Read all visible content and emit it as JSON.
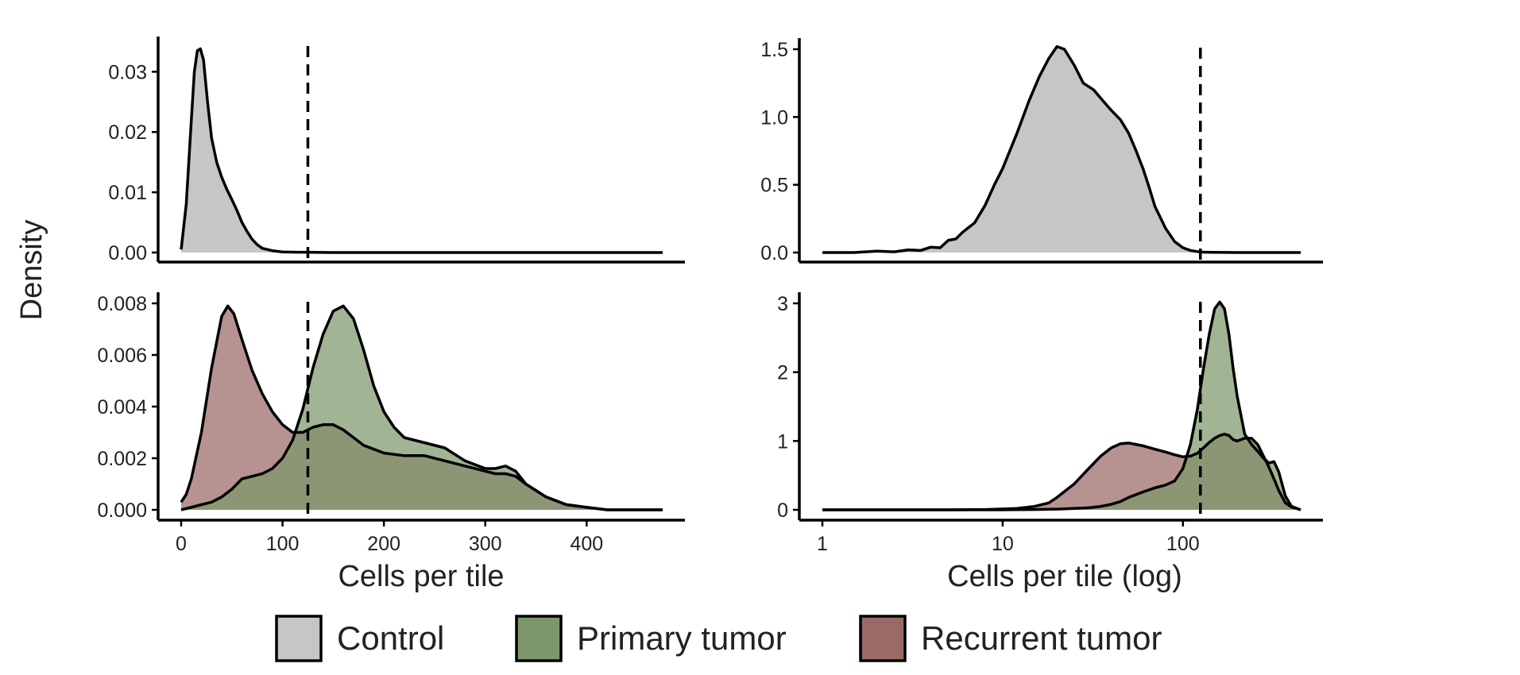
{
  "colors": {
    "control": "#c6c6c6",
    "primary": "#7d976a",
    "recurrent": "#9a6a66",
    "overlap": "#7a6455",
    "line": "#000000"
  },
  "figure": {
    "y_label": "Density",
    "x_label_left": "Cells per tile",
    "x_label_right": "Cells per tile (log)"
  },
  "legend": {
    "items": [
      {
        "key": "control",
        "label": "Control"
      },
      {
        "key": "primary",
        "label": "Primary tumor"
      },
      {
        "key": "recurrent",
        "label": "Recurrent tumor"
      }
    ]
  },
  "chart_data": [
    {
      "type": "area",
      "id": "top-left",
      "xlim": [
        0,
        475
      ],
      "ylim": [
        0,
        0.034
      ],
      "x_ticks": [],
      "y_ticks": [
        "0.00",
        "0.01",
        "0.02",
        "0.03"
      ],
      "y_tick_values": [
        0,
        0.01,
        0.02,
        0.03
      ],
      "threshold": 125,
      "threshold_style": "dashed",
      "series": [
        {
          "key": "control",
          "x": [
            0,
            5,
            10,
            13,
            16,
            19,
            22,
            26,
            30,
            35,
            40,
            45,
            50,
            55,
            60,
            65,
            70,
            75,
            80,
            90,
            100,
            115,
            130,
            150,
            475
          ],
          "y": [
            0.0005,
            0.008,
            0.022,
            0.03,
            0.0335,
            0.0338,
            0.032,
            0.025,
            0.019,
            0.015,
            0.0125,
            0.0105,
            0.0088,
            0.007,
            0.005,
            0.0035,
            0.0022,
            0.0013,
            0.0007,
            0.0003,
            0.0001,
            5e-05,
            2e-05,
            0,
            0
          ]
        }
      ]
    },
    {
      "type": "area",
      "id": "top-right",
      "scale": "log",
      "xlim": [
        1,
        450
      ],
      "ylim": [
        0,
        1.5
      ],
      "x_ticks": [],
      "y_ticks": [
        "0.0",
        "0.5",
        "1.0",
        "1.5"
      ],
      "y_tick_values": [
        0,
        0.5,
        1.0,
        1.5
      ],
      "threshold": 125,
      "threshold_style": "dashed",
      "series": [
        {
          "key": "control",
          "x": [
            1,
            1.5,
            2,
            2.5,
            3,
            3.5,
            4,
            4.5,
            5,
            5.5,
            6,
            7,
            8,
            9,
            10,
            12,
            14,
            16,
            18,
            20,
            22,
            25,
            28,
            32,
            36,
            40,
            45,
            50,
            55,
            60,
            65,
            70,
            80,
            90,
            100,
            110,
            120,
            130,
            150,
            200,
            300,
            450
          ],
          "y": [
            0,
            0,
            0.01,
            0.005,
            0.02,
            0.015,
            0.04,
            0.035,
            0.09,
            0.1,
            0.15,
            0.22,
            0.35,
            0.5,
            0.62,
            0.88,
            1.12,
            1.3,
            1.43,
            1.52,
            1.5,
            1.38,
            1.25,
            1.2,
            1.12,
            1.05,
            0.98,
            0.88,
            0.75,
            0.62,
            0.48,
            0.34,
            0.18,
            0.08,
            0.035,
            0.015,
            0.007,
            0.003,
            0.001,
            0,
            0,
            0
          ]
        }
      ]
    },
    {
      "type": "area",
      "id": "bottom-left",
      "xlim": [
        0,
        475
      ],
      "ylim": [
        0,
        0.008
      ],
      "x_ticks": [
        "0",
        "100",
        "200",
        "300",
        "400"
      ],
      "x_tick_values": [
        0,
        100,
        200,
        300,
        400
      ],
      "y_ticks": [
        "0.000",
        "0.002",
        "0.004",
        "0.006",
        "0.008"
      ],
      "y_tick_values": [
        0,
        0.002,
        0.004,
        0.006,
        0.008
      ],
      "threshold": 125,
      "threshold_style": "dashed",
      "series": [
        {
          "key": "recurrent",
          "x": [
            0,
            5,
            10,
            20,
            30,
            40,
            46,
            52,
            60,
            70,
            80,
            90,
            100,
            110,
            120,
            130,
            140,
            150,
            160,
            170,
            180,
            200,
            220,
            240,
            260,
            280,
            300,
            310,
            320,
            330,
            340,
            360,
            380,
            400,
            420,
            475
          ],
          "y": [
            0.0003,
            0.0006,
            0.0012,
            0.003,
            0.0055,
            0.0075,
            0.0079,
            0.0076,
            0.0066,
            0.0054,
            0.0045,
            0.0038,
            0.0033,
            0.003,
            0.003,
            0.0032,
            0.0033,
            0.0033,
            0.0031,
            0.0028,
            0.0025,
            0.0022,
            0.0021,
            0.0021,
            0.0019,
            0.0017,
            0.0015,
            0.0014,
            0.0014,
            0.0013,
            0.001,
            0.0005,
            0.0002,
            0.0001,
            0,
            0
          ]
        },
        {
          "key": "primary",
          "x": [
            0,
            10,
            20,
            30,
            40,
            50,
            60,
            70,
            80,
            90,
            100,
            110,
            120,
            130,
            140,
            150,
            160,
            170,
            180,
            190,
            200,
            210,
            220,
            240,
            260,
            280,
            300,
            310,
            320,
            330,
            340,
            360,
            380,
            400,
            420,
            475
          ],
          "y": [
            0,
            0.0001,
            0.0002,
            0.0003,
            0.0005,
            0.0008,
            0.0012,
            0.0013,
            0.0014,
            0.0016,
            0.002,
            0.0027,
            0.0039,
            0.0055,
            0.0068,
            0.0077,
            0.0079,
            0.0074,
            0.0062,
            0.0048,
            0.0038,
            0.0032,
            0.0028,
            0.0026,
            0.0024,
            0.0019,
            0.0016,
            0.0016,
            0.0017,
            0.0015,
            0.001,
            0.0005,
            0.0002,
            0.0001,
            0,
            0
          ]
        }
      ]
    },
    {
      "type": "area",
      "id": "bottom-right",
      "scale": "log",
      "xlim": [
        1,
        450
      ],
      "ylim": [
        0,
        3
      ],
      "x_ticks": [
        "1",
        "10",
        "100"
      ],
      "x_tick_values": [
        1,
        10,
        100
      ],
      "y_ticks": [
        "0",
        "1",
        "2",
        "3"
      ],
      "y_tick_values": [
        0,
        1,
        2,
        3
      ],
      "threshold": 125,
      "threshold_style": "dashed",
      "series": [
        {
          "key": "recurrent",
          "x": [
            1,
            5,
            8,
            12,
            15,
            18,
            20,
            25,
            30,
            35,
            40,
            45,
            50,
            60,
            70,
            80,
            90,
            100,
            110,
            120,
            130,
            140,
            150,
            160,
            170,
            180,
            190,
            200,
            220,
            240,
            260,
            280,
            300,
            320,
            340,
            370,
            400,
            450
          ],
          "y": [
            0,
            0,
            0.005,
            0.02,
            0.05,
            0.1,
            0.18,
            0.38,
            0.6,
            0.78,
            0.9,
            0.96,
            0.97,
            0.93,
            0.88,
            0.84,
            0.8,
            0.77,
            0.78,
            0.82,
            0.9,
            0.98,
            1.04,
            1.08,
            1.1,
            1.08,
            1.02,
            1.0,
            1.04,
            1.04,
            0.95,
            0.78,
            0.62,
            0.45,
            0.28,
            0.1,
            0.04,
            0
          ]
        },
        {
          "key": "primary",
          "x": [
            1,
            10,
            15,
            20,
            25,
            30,
            35,
            40,
            45,
            50,
            60,
            70,
            80,
            90,
            100,
            110,
            120,
            130,
            140,
            150,
            160,
            170,
            180,
            190,
            200,
            220,
            240,
            260,
            280,
            300,
            320,
            340,
            370,
            400,
            450
          ],
          "y": [
            0,
            0,
            0.005,
            0.01,
            0.02,
            0.03,
            0.05,
            0.08,
            0.12,
            0.18,
            0.26,
            0.32,
            0.36,
            0.42,
            0.6,
            0.95,
            1.45,
            2.05,
            2.55,
            2.92,
            3.02,
            2.92,
            2.55,
            2.05,
            1.65,
            1.1,
            0.95,
            0.85,
            0.75,
            0.68,
            0.7,
            0.55,
            0.2,
            0.05,
            0
          ]
        }
      ]
    }
  ]
}
